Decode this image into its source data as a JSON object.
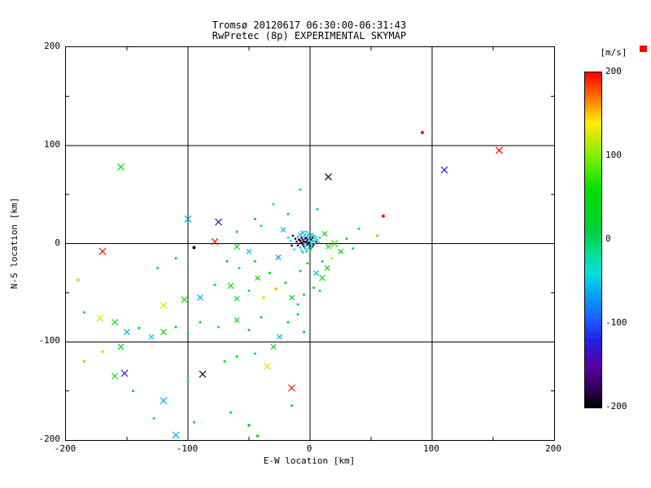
{
  "chart_data": {
    "type": "scatter",
    "title": "Tromsø 20120617 06:30:00-06:31:43",
    "subtitle": "RwPretec (8p) EXPERIMENTAL SKYMAP",
    "xlabel": "E-W location [km]",
    "ylabel": "N-S location [km]",
    "xlim": [
      -200,
      200
    ],
    "ylim": [
      -200,
      200
    ],
    "xticks": [
      -200,
      -100,
      0,
      100,
      200
    ],
    "yticks": [
      -200,
      -100,
      0,
      100,
      200
    ],
    "minor_ticks": [
      -150,
      -50,
      50,
      150
    ],
    "grid": true,
    "background": "#ffffff",
    "axis_color": "#000000",
    "colorbar": {
      "label": "[m/s]",
      "ticks": [
        200,
        100,
        0,
        -100,
        -200
      ],
      "vmin": -200,
      "vmax": 200,
      "corner_mark_color": "#ff0000",
      "stops": [
        [
          -200,
          "#000000"
        ],
        [
          -180,
          "#2a0050"
        ],
        [
          -150,
          "#5a00a0"
        ],
        [
          -120,
          "#2020e0"
        ],
        [
          -100,
          "#2050ff"
        ],
        [
          -60,
          "#00b0f0"
        ],
        [
          -40,
          "#00e0e0"
        ],
        [
          -20,
          "#00e0a0"
        ],
        [
          10,
          "#00d040"
        ],
        [
          60,
          "#00e000"
        ],
        [
          100,
          "#80f000"
        ],
        [
          125,
          "#d8e800"
        ],
        [
          140,
          "#ffee00"
        ],
        [
          165,
          "#ff8800"
        ],
        [
          200,
          "#ff0000"
        ]
      ]
    },
    "points": [
      [
        -14,
        8,
        -190,
        "d",
        1.3
      ],
      [
        -12,
        5,
        -195,
        "d",
        1.3
      ],
      [
        -11,
        2,
        -180,
        "d",
        1.3
      ],
      [
        -10,
        7,
        -55,
        "d",
        1.3
      ],
      [
        -10,
        -2,
        -190,
        "d",
        1.3
      ],
      [
        -9,
        4,
        -195,
        "d",
        1.5
      ],
      [
        -9,
        0,
        -170,
        "d",
        1.3
      ],
      [
        -8,
        9,
        -50,
        "x",
        2.5
      ],
      [
        -8,
        3,
        -190,
        "d",
        1.3
      ],
      [
        -8,
        -4,
        -55,
        "d",
        1.3
      ],
      [
        -7,
        6,
        -180,
        "d",
        1.3
      ],
      [
        -7,
        1,
        -195,
        "d",
        1.5
      ],
      [
        -7,
        -7,
        -40,
        "d",
        1.3
      ],
      [
        -6,
        11,
        -55,
        "x",
        2.5
      ],
      [
        -6,
        4,
        -190,
        "d",
        1.3
      ],
      [
        -6,
        -1,
        -170,
        "d",
        1.3
      ],
      [
        -6,
        -9,
        20,
        "d",
        1.3
      ],
      [
        -5,
        7,
        -50,
        "d",
        1.3
      ],
      [
        -5,
        2,
        -195,
        "d",
        1.5
      ],
      [
        -5,
        -3,
        -180,
        "d",
        1.3
      ],
      [
        -4,
        9,
        -55,
        "d",
        1.3
      ],
      [
        -4,
        5,
        -190,
        "d",
        1.3
      ],
      [
        -4,
        0,
        -30,
        "d",
        1.3
      ],
      [
        -4,
        -5,
        -55,
        "d",
        1.3
      ],
      [
        -3,
        12,
        30,
        "d",
        1.3
      ],
      [
        -3,
        6,
        -180,
        "d",
        1.3
      ],
      [
        -3,
        2,
        -195,
        "d",
        1.5
      ],
      [
        -3,
        -2,
        -50,
        "d",
        1.3
      ],
      [
        -3,
        -8,
        10,
        "d",
        1.3
      ],
      [
        -2,
        8,
        -55,
        "d",
        1.3
      ],
      [
        -2,
        4,
        -190,
        "d",
        1.3
      ],
      [
        -2,
        -1,
        -170,
        "d",
        1.3
      ],
      [
        -2,
        -6,
        -40,
        "d",
        1.3
      ],
      [
        -1,
        10,
        20,
        "d",
        1.3
      ],
      [
        -1,
        5,
        -50,
        "d",
        1.3
      ],
      [
        -1,
        1,
        -190,
        "d",
        1.5
      ],
      [
        -1,
        -4,
        -55,
        "d",
        1.3
      ],
      [
        0,
        7,
        -180,
        "d",
        1.3
      ],
      [
        0,
        3,
        -40,
        "d",
        1.3
      ],
      [
        0,
        -2,
        -190,
        "d",
        1.3
      ],
      [
        0,
        -8,
        30,
        "d",
        1.3
      ],
      [
        1,
        9,
        -55,
        "x",
        2.5
      ],
      [
        1,
        4,
        -170,
        "d",
        1.3
      ],
      [
        1,
        0,
        -50,
        "d",
        1.3
      ],
      [
        1,
        -5,
        10,
        "d",
        1.3
      ],
      [
        2,
        6,
        -190,
        "d",
        1.3
      ],
      [
        2,
        2,
        -55,
        "d",
        1.3
      ],
      [
        2,
        -3,
        -170,
        "d",
        1.3
      ],
      [
        3,
        8,
        20,
        "d",
        1.3
      ],
      [
        3,
        3,
        -50,
        "d",
        1.3
      ],
      [
        3,
        -1,
        -180,
        "d",
        1.3
      ],
      [
        4,
        5,
        -55,
        "d",
        1.3
      ],
      [
        4,
        0,
        10,
        "d",
        1.3
      ],
      [
        5,
        7,
        -40,
        "d",
        1.3
      ],
      [
        5,
        2,
        -170,
        "d",
        1.3
      ],
      [
        6,
        4,
        -55,
        "d",
        1.3
      ],
      [
        7,
        1,
        20,
        "d",
        1.3
      ],
      [
        8,
        6,
        -50,
        "d",
        1.3
      ],
      [
        -16,
        3,
        -55,
        "d",
        1.3
      ],
      [
        -15,
        -2,
        -190,
        "d",
        1.3
      ],
      [
        -18,
        6,
        -50,
        "d",
        1.3
      ],
      [
        -13,
        -6,
        -30,
        "d",
        1.3
      ],
      [
        12,
        10,
        40,
        "x",
        3
      ],
      [
        15,
        -3,
        60,
        "x",
        3
      ],
      [
        20,
        0,
        70,
        "x",
        4
      ],
      [
        25,
        -8,
        45,
        "x",
        3
      ],
      [
        -22,
        14,
        -55,
        "x",
        3
      ],
      [
        -26,
        -14,
        -75,
        "x",
        3
      ],
      [
        10,
        -18,
        -55,
        "d",
        1.5
      ],
      [
        14,
        -25,
        30,
        "x",
        3
      ],
      [
        -2,
        -20,
        50,
        "d",
        1.5
      ],
      [
        5,
        -30,
        -55,
        "x",
        3
      ],
      [
        10,
        -35,
        40,
        "x",
        3.5
      ],
      [
        -8,
        -28,
        60,
        "d",
        1.5
      ],
      [
        3,
        -45,
        30,
        "d",
        1.5
      ],
      [
        -5,
        -52,
        20,
        "d",
        1.5
      ],
      [
        8,
        -48,
        -50,
        "d",
        1.5
      ],
      [
        18,
        -15,
        120,
        "d",
        1.5
      ],
      [
        30,
        5,
        60,
        "d",
        1.5
      ],
      [
        35,
        -5,
        -55,
        "d",
        1.5
      ],
      [
        -155,
        78,
        60,
        "x",
        4
      ],
      [
        110,
        75,
        -120,
        "x",
        4
      ],
      [
        155,
        95,
        200,
        "x",
        4
      ],
      [
        92,
        113,
        195,
        "d",
        2
      ],
      [
        15,
        68,
        -195,
        "x",
        4
      ],
      [
        -8,
        55,
        -55,
        "d",
        1.5
      ],
      [
        -30,
        40,
        -50,
        "d",
        1.5
      ],
      [
        -18,
        30,
        25,
        "d",
        1.5
      ],
      [
        6,
        35,
        -55,
        "d",
        1.5
      ],
      [
        -45,
        25,
        -60,
        "d",
        1.5
      ],
      [
        40,
        15,
        -50,
        "d",
        1.5
      ],
      [
        60,
        28,
        195,
        "d",
        2
      ],
      [
        55,
        8,
        160,
        "d",
        1.5
      ],
      [
        -100,
        25,
        -65,
        "x",
        4
      ],
      [
        -75,
        22,
        -140,
        "x",
        4
      ],
      [
        -60,
        12,
        40,
        "d",
        1.5
      ],
      [
        -40,
        18,
        -50,
        "d",
        1.5
      ],
      [
        -170,
        -8,
        195,
        "x",
        4
      ],
      [
        -190,
        -37,
        110,
        "d",
        1.8
      ],
      [
        -78,
        2,
        195,
        "x",
        4
      ],
      [
        -95,
        -4,
        -195,
        "d",
        2
      ],
      [
        -60,
        -3,
        45,
        "x",
        3.5
      ],
      [
        -50,
        -8,
        -55,
        "x",
        3
      ],
      [
        -68,
        -18,
        30,
        "d",
        1.5
      ],
      [
        -58,
        -25,
        -50,
        "d",
        1.5
      ],
      [
        -45,
        -18,
        60,
        "d",
        1.5
      ],
      [
        -110,
        -15,
        40,
        "d",
        1.5
      ],
      [
        -125,
        -25,
        -55,
        "d",
        1.5
      ],
      [
        -120,
        -63,
        125,
        "x",
        4
      ],
      [
        -103,
        -57,
        50,
        "x",
        3.5
      ],
      [
        -90,
        -55,
        -60,
        "x",
        3.5
      ],
      [
        -78,
        -42,
        40,
        "d",
        1.5
      ],
      [
        -65,
        -43,
        60,
        "x",
        3.5
      ],
      [
        -60,
        -56,
        30,
        "x",
        3
      ],
      [
        -50,
        -48,
        -50,
        "d",
        1.5
      ],
      [
        -43,
        -35,
        55,
        "x",
        3
      ],
      [
        -38,
        -55,
        120,
        "d",
        1.8
      ],
      [
        -33,
        -30,
        40,
        "d",
        1.5
      ],
      [
        -28,
        -46,
        155,
        "d",
        1.8
      ],
      [
        -20,
        -40,
        60,
        "d",
        1.5
      ],
      [
        -15,
        -55,
        30,
        "x",
        3
      ],
      [
        -10,
        -62,
        -55,
        "d",
        1.5
      ],
      [
        -185,
        -70,
        -60,
        "d",
        1.5
      ],
      [
        -172,
        -76,
        125,
        "x",
        4
      ],
      [
        -160,
        -80,
        50,
        "x",
        3.5
      ],
      [
        -150,
        -90,
        -60,
        "x",
        3.5
      ],
      [
        -140,
        -86,
        40,
        "d",
        1.5
      ],
      [
        -130,
        -95,
        -50,
        "x",
        3
      ],
      [
        -120,
        -90,
        60,
        "x",
        3.5
      ],
      [
        -110,
        -85,
        30,
        "d",
        1.5
      ],
      [
        -100,
        -92,
        -60,
        "d",
        1.5
      ],
      [
        -90,
        -80,
        50,
        "d",
        1.5
      ],
      [
        -75,
        -85,
        -50,
        "d",
        1.5
      ],
      [
        -60,
        -78,
        40,
        "x",
        3
      ],
      [
        -50,
        -88,
        -60,
        "d",
        1.5
      ],
      [
        -40,
        -75,
        30,
        "d",
        1.5
      ],
      [
        -25,
        -95,
        -55,
        "x",
        3
      ],
      [
        -18,
        -80,
        45,
        "d",
        1.5
      ],
      [
        -10,
        -72,
        -60,
        "d",
        1.5
      ],
      [
        -5,
        -90,
        35,
        "d",
        1.5
      ],
      [
        -185,
        -120,
        155,
        "d",
        1.8
      ],
      [
        -170,
        -110,
        120,
        "d",
        1.8
      ],
      [
        -155,
        -105,
        50,
        "x",
        3.5
      ],
      [
        -160,
        -135,
        45,
        "x",
        3.5
      ],
      [
        -152,
        -132,
        -130,
        "x",
        4
      ],
      [
        -145,
        -150,
        60,
        "d",
        1.5
      ],
      [
        -120,
        -160,
        -60,
        "x",
        4
      ],
      [
        -88,
        -133,
        -190,
        "x",
        4
      ],
      [
        -60,
        -115,
        40,
        "d",
        1.5
      ],
      [
        -35,
        -125,
        125,
        "x",
        4
      ],
      [
        -15,
        -147,
        195,
        "x",
        4
      ],
      [
        -30,
        -105,
        50,
        "x",
        3
      ],
      [
        -45,
        -112,
        -55,
        "d",
        1.5
      ],
      [
        -70,
        -120,
        35,
        "d",
        1.5
      ],
      [
        -100,
        -140,
        -50,
        "d",
        1.5
      ],
      [
        -110,
        -195,
        -60,
        "x",
        4
      ],
      [
        -128,
        -178,
        -50,
        "d",
        1.5
      ],
      [
        -95,
        -182,
        40,
        "d",
        1.5
      ],
      [
        -50,
        -185,
        45,
        "d",
        1.8
      ],
      [
        -43,
        -196,
        50,
        "d",
        1.8
      ],
      [
        -65,
        -172,
        35,
        "d",
        1.5
      ],
      [
        -15,
        -165,
        30,
        "d",
        1.5
      ]
    ]
  }
}
